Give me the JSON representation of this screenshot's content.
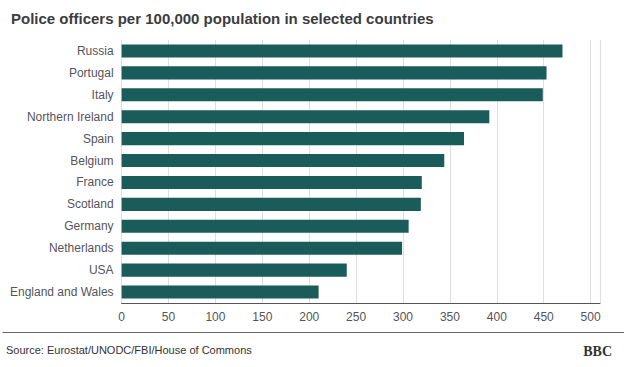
{
  "chart_data": {
    "type": "bar",
    "orientation": "horizontal",
    "title": "Police officers per 100,000 population in selected countries",
    "categories": [
      "Russia",
      "Portugal",
      "Italy",
      "Northern Ireland",
      "Spain",
      "Belgium",
      "France",
      "Scotland",
      "Germany",
      "Netherlands",
      "USA",
      "England and Wales"
    ],
    "values": [
      470,
      453,
      449,
      392,
      365,
      344,
      320,
      319,
      306,
      299,
      240,
      210
    ],
    "color": "#1a5c5a",
    "xlim": [
      0,
      510
    ],
    "xticks": [
      0,
      50,
      100,
      150,
      200,
      250,
      300,
      350,
      400,
      450,
      500
    ],
    "grid": true,
    "annotations": [
      "Source: Eurostat/UNODC/FBI/House of Commons",
      "BBC"
    ]
  }
}
